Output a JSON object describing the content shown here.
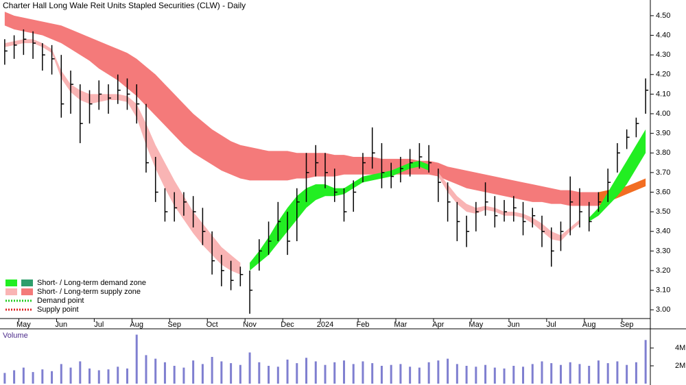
{
  "chart_data": {
    "type": "candlestick",
    "title": "Charter Hall Long Wale Reit Units Stapled Securities (CLW) - Daily",
    "categories": [
      null,
      null,
      "May",
      null,
      null,
      null,
      "Jun",
      null,
      null,
      null,
      "Jul",
      null,
      null,
      null,
      "Aug",
      null,
      null,
      null,
      "Sep",
      null,
      null,
      null,
      "Oct",
      null,
      null,
      null,
      "Nov",
      null,
      null,
      null,
      "Dec",
      null,
      null,
      null,
      "2024",
      null,
      null,
      null,
      "Feb",
      null,
      null,
      null,
      "Mar",
      null,
      null,
      null,
      "Apr",
      null,
      null,
      null,
      "May",
      null,
      null,
      null,
      "Jun",
      null,
      null,
      null,
      "Jul",
      null,
      null,
      null,
      "Aug",
      null,
      null,
      null,
      "Sep",
      null,
      null
    ],
    "high": [
      4.38,
      4.4,
      4.43,
      4.42,
      4.36,
      4.35,
      4.3,
      4.22,
      4.15,
      4.12,
      4.17,
      4.15,
      4.2,
      4.18,
      4.15,
      4.05,
      3.78,
      3.62,
      3.6,
      3.6,
      3.58,
      3.52,
      3.4,
      3.28,
      3.25,
      3.22,
      3.2,
      3.36,
      3.45,
      3.55,
      3.5,
      3.62,
      3.8,
      3.84,
      3.8,
      3.72,
      3.62,
      3.66,
      3.8,
      3.93,
      3.85,
      3.75,
      3.78,
      3.82,
      3.85,
      3.84,
      3.72,
      3.65,
      3.55,
      3.48,
      3.55,
      3.65,
      3.58,
      3.56,
      3.58,
      3.55,
      3.52,
      3.48,
      3.42,
      3.45,
      3.68,
      3.62,
      3.55,
      3.6,
      3.72,
      3.85,
      3.92,
      3.98,
      4.18
    ],
    "low": [
      4.25,
      4.28,
      4.3,
      4.28,
      4.22,
      4.2,
      3.98,
      4.0,
      3.85,
      3.95,
      4.02,
      4.0,
      4.05,
      4.02,
      3.95,
      3.7,
      3.55,
      3.45,
      3.45,
      3.48,
      3.42,
      3.33,
      3.18,
      3.12,
      3.1,
      3.12,
      2.98,
      3.2,
      3.28,
      3.35,
      3.28,
      3.35,
      3.55,
      3.68,
      3.62,
      3.55,
      3.45,
      3.5,
      3.65,
      3.72,
      3.62,
      3.62,
      3.65,
      3.68,
      3.72,
      3.7,
      3.55,
      3.45,
      3.35,
      3.32,
      3.4,
      3.48,
      3.42,
      3.45,
      3.45,
      3.38,
      3.42,
      3.32,
      3.22,
      3.3,
      3.38,
      3.42,
      3.4,
      3.5,
      3.55,
      3.7,
      3.82,
      3.88,
      4.0
    ],
    "close": [
      4.32,
      4.35,
      4.38,
      4.36,
      4.3,
      4.28,
      4.05,
      4.15,
      3.95,
      4.05,
      4.1,
      4.08,
      4.12,
      4.1,
      4.05,
      3.75,
      3.6,
      3.5,
      3.52,
      3.55,
      3.5,
      3.4,
      3.25,
      3.2,
      3.15,
      3.18,
      3.1,
      3.3,
      3.35,
      3.45,
      3.35,
      3.55,
      3.7,
      3.75,
      3.7,
      3.6,
      3.5,
      3.6,
      3.75,
      3.8,
      3.7,
      3.68,
      3.72,
      3.75,
      3.78,
      3.75,
      3.65,
      3.55,
      3.45,
      3.4,
      3.5,
      3.55,
      3.48,
      3.5,
      3.52,
      3.45,
      3.48,
      3.4,
      3.3,
      3.4,
      3.55,
      3.5,
      3.45,
      3.55,
      3.65,
      3.8,
      3.88,
      3.95,
      4.12
    ],
    "zones": [
      {
        "color": "#f47a7a",
        "upper": [
          4.52,
          4.5,
          4.49,
          4.48,
          4.47,
          4.46,
          4.45,
          4.43,
          4.41,
          4.39,
          4.37,
          4.35,
          4.33,
          4.31,
          4.28,
          4.24,
          4.2,
          4.15,
          4.1,
          4.05,
          4.0,
          3.96,
          3.92,
          3.89,
          3.86,
          3.84,
          3.83,
          3.82,
          3.81,
          3.81,
          3.81,
          3.8,
          3.8,
          3.8,
          3.8,
          3.79,
          3.79,
          3.78,
          3.78,
          3.78,
          3.77,
          3.77,
          3.77,
          3.77,
          3.76,
          3.76,
          3.75,
          3.73,
          3.72,
          3.71,
          3.7,
          3.69,
          3.68,
          3.67,
          3.66,
          3.65,
          3.64,
          3.63,
          3.62,
          3.61,
          3.61,
          3.6,
          3.6,
          3.6,
          null,
          null,
          null,
          null,
          null
        ],
        "lower": [
          4.45,
          4.43,
          4.42,
          4.41,
          4.4,
          4.38,
          4.36,
          4.33,
          4.3,
          4.27,
          4.23,
          4.2,
          4.17,
          4.13,
          4.09,
          4.04,
          3.99,
          3.94,
          3.89,
          3.84,
          3.8,
          3.77,
          3.74,
          3.71,
          3.69,
          3.67,
          3.66,
          3.66,
          3.66,
          3.66,
          3.66,
          3.67,
          3.67,
          3.68,
          3.68,
          3.68,
          3.69,
          3.69,
          3.69,
          3.69,
          3.69,
          3.69,
          3.69,
          3.69,
          3.69,
          3.69,
          3.68,
          3.66,
          3.64,
          3.62,
          3.61,
          3.6,
          3.59,
          3.58,
          3.57,
          3.56,
          3.55,
          3.55,
          3.54,
          3.54,
          3.53,
          3.53,
          3.53,
          3.53,
          null,
          null,
          null,
          null,
          null
        ]
      },
      {
        "color": "#f26d22",
        "upper": [
          null,
          null,
          null,
          null,
          null,
          null,
          null,
          null,
          null,
          null,
          null,
          null,
          null,
          null,
          null,
          null,
          null,
          null,
          null,
          null,
          null,
          null,
          null,
          null,
          null,
          null,
          null,
          null,
          null,
          null,
          null,
          null,
          null,
          null,
          null,
          null,
          null,
          null,
          null,
          null,
          null,
          null,
          null,
          null,
          null,
          null,
          null,
          null,
          null,
          null,
          null,
          null,
          null,
          null,
          null,
          null,
          null,
          null,
          null,
          null,
          null,
          null,
          null,
          3.6,
          3.61,
          3.62,
          3.63,
          3.65,
          3.67
        ],
        "lower": [
          null,
          null,
          null,
          null,
          null,
          null,
          null,
          null,
          null,
          null,
          null,
          null,
          null,
          null,
          null,
          null,
          null,
          null,
          null,
          null,
          null,
          null,
          null,
          null,
          null,
          null,
          null,
          null,
          null,
          null,
          null,
          null,
          null,
          null,
          null,
          null,
          null,
          null,
          null,
          null,
          null,
          null,
          null,
          null,
          null,
          null,
          null,
          null,
          null,
          null,
          null,
          null,
          null,
          null,
          null,
          null,
          null,
          null,
          null,
          null,
          null,
          null,
          null,
          3.53,
          3.55,
          3.57,
          3.59,
          3.61,
          3.63
        ]
      },
      {
        "color": "#f9b4b4",
        "upper": [
          4.36,
          4.37,
          4.38,
          4.38,
          4.36,
          4.33,
          4.22,
          4.15,
          4.12,
          4.1,
          4.1,
          4.1,
          4.1,
          4.09,
          4.05,
          3.95,
          3.84,
          3.75,
          3.66,
          3.58,
          3.5,
          3.44,
          3.38,
          3.32,
          3.28,
          3.24,
          null,
          null,
          null,
          null,
          null,
          null,
          null,
          null,
          null,
          null,
          null,
          null,
          null,
          null,
          null,
          null,
          null,
          null,
          null,
          null,
          3.7,
          3.64,
          3.58,
          3.54,
          3.52,
          3.53,
          3.52,
          3.5,
          3.5,
          3.49,
          3.47,
          3.44,
          3.4,
          3.38,
          3.42,
          3.46,
          null,
          null,
          null,
          null,
          null,
          null,
          null
        ],
        "lower": [
          4.34,
          4.35,
          4.36,
          4.36,
          4.34,
          4.31,
          4.18,
          4.11,
          4.07,
          4.05,
          4.06,
          4.07,
          4.07,
          4.06,
          3.98,
          3.84,
          3.72,
          3.62,
          3.53,
          3.46,
          3.39,
          3.33,
          3.28,
          3.23,
          3.2,
          3.18,
          null,
          null,
          null,
          null,
          null,
          null,
          null,
          null,
          null,
          null,
          null,
          null,
          null,
          null,
          null,
          null,
          null,
          null,
          null,
          null,
          3.68,
          3.6,
          3.54,
          3.5,
          3.49,
          3.51,
          3.5,
          3.48,
          3.48,
          3.47,
          3.44,
          3.4,
          3.36,
          3.35,
          3.4,
          3.44,
          null,
          null,
          null,
          null,
          null,
          null,
          null
        ]
      },
      {
        "color": "#22ee22",
        "upper": [
          null,
          null,
          null,
          null,
          null,
          null,
          null,
          null,
          null,
          null,
          null,
          null,
          null,
          null,
          null,
          null,
          null,
          null,
          null,
          null,
          null,
          null,
          null,
          null,
          null,
          null,
          3.24,
          3.3,
          3.37,
          3.45,
          3.52,
          3.58,
          3.62,
          3.64,
          3.64,
          3.62,
          3.62,
          3.65,
          3.68,
          3.69,
          3.7,
          3.71,
          3.73,
          3.75,
          3.76,
          3.74,
          null,
          null,
          null,
          null,
          null,
          null,
          null,
          null,
          null,
          null,
          null,
          null,
          null,
          null,
          null,
          null,
          3.47,
          3.52,
          3.6,
          3.68,
          3.76,
          3.84,
          3.92
        ],
        "lower": [
          null,
          null,
          null,
          null,
          null,
          null,
          null,
          null,
          null,
          null,
          null,
          null,
          null,
          null,
          null,
          null,
          null,
          null,
          null,
          null,
          null,
          null,
          null,
          null,
          null,
          null,
          3.2,
          3.24,
          3.28,
          3.34,
          3.4,
          3.46,
          3.52,
          3.56,
          3.58,
          3.58,
          3.59,
          3.62,
          3.65,
          3.66,
          3.67,
          3.68,
          3.7,
          3.72,
          3.73,
          3.71,
          null,
          null,
          null,
          null,
          null,
          null,
          null,
          null,
          null,
          null,
          null,
          null,
          null,
          null,
          null,
          null,
          3.45,
          3.48,
          3.53,
          3.58,
          3.64,
          3.72,
          3.8
        ]
      }
    ],
    "ylim": [
      2.91,
      4.58
    ],
    "yticks": [
      {
        "value": 3,
        "label": "3.00"
      },
      {
        "value": 3.1,
        "label": "3.10"
      },
      {
        "value": 3.2,
        "label": "3.20"
      },
      {
        "value": 3.3,
        "label": "3.30"
      },
      {
        "value": 3.4,
        "label": "3.40"
      },
      {
        "value": 3.5,
        "label": "3.50"
      },
      {
        "value": 3.6,
        "label": "3.60"
      },
      {
        "value": 3.7,
        "label": "3.70"
      },
      {
        "value": 3.8,
        "label": "3.80"
      },
      {
        "value": 3.9,
        "label": "3.90"
      },
      {
        "value": 4,
        "label": "4.00"
      },
      {
        "value": 4.1,
        "label": "4.10"
      },
      {
        "value": 4.2,
        "label": "4.20"
      },
      {
        "value": 4.3,
        "label": "4.30"
      },
      {
        "value": 4.4,
        "label": "4.40"
      },
      {
        "value": 4.5,
        "label": "4.50"
      }
    ],
    "legend": [
      {
        "text": "Short- / Long-term demand zone",
        "colors": [
          "#22ee22",
          "#2e9e6b"
        ]
      },
      {
        "text": "Short- / Long-term supply zone",
        "colors": [
          "#f9b4b4",
          "#f47a7a"
        ]
      },
      {
        "text": "Demand point",
        "dotted": "#22cc22"
      },
      {
        "text": "Supply point",
        "dotted": "#dd2222"
      }
    ],
    "volume": {
      "label": "Volume",
      "color": "#7f7fd0",
      "values": [
        1200000,
        1500000,
        1800000,
        1300000,
        1600000,
        1400000,
        2200000,
        1800000,
        2500000,
        1700000,
        1500000,
        1600000,
        1900000,
        1700000,
        5500000,
        3200000,
        2800000,
        2400000,
        2000000,
        1800000,
        2600000,
        2200000,
        3000000,
        2500000,
        2300000,
        2100000,
        3500000,
        2400000,
        2000000,
        1900000,
        2700000,
        2300000,
        2900000,
        2500000,
        2100000,
        2400000,
        2600000,
        2200000,
        2500000,
        2300000,
        2000000,
        2100000,
        2200000,
        1900000,
        1800000,
        2400000,
        2600000,
        2800000,
        2200000,
        2000000,
        1900000,
        2100000,
        1800000,
        1700000,
        2000000,
        1900000,
        2200000,
        2500000,
        2300000,
        2100000,
        2400000,
        2200000,
        2000000,
        2600000,
        2300000,
        2500000,
        2100000,
        2400000,
        4900000
      ],
      "ylim": [
        0,
        6000000
      ],
      "yticks": [
        {
          "value": 2000000,
          "label": "2M"
        },
        {
          "value": 4000000,
          "label": "4M"
        }
      ]
    }
  }
}
